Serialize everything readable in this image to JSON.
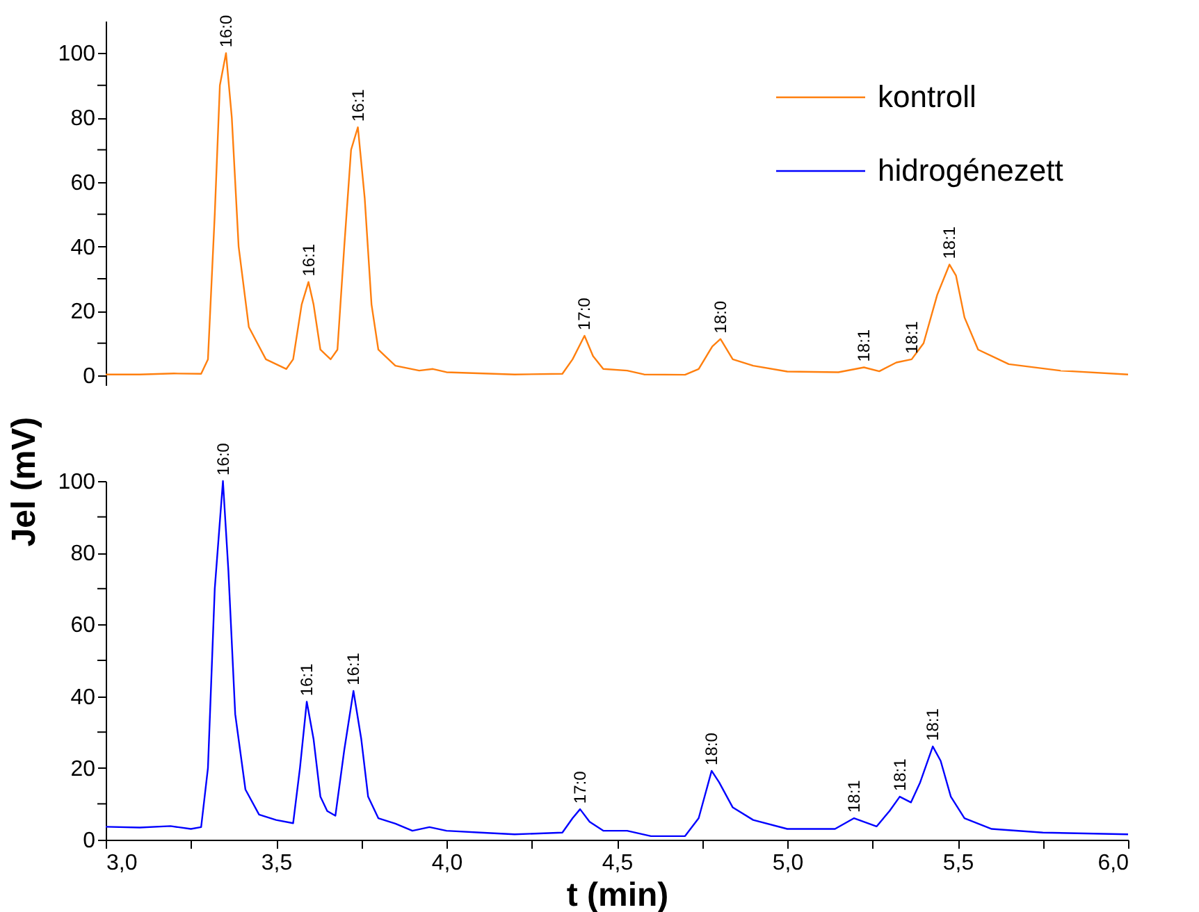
{
  "chart_data": [
    {
      "type": "line",
      "xlim": [
        3.0,
        6.0
      ],
      "ylim": [
        -3,
        110
      ],
      "tick_labels": "y",
      "legend": "top right",
      "grid": false,
      "yticks": [
        0,
        {
          "value": 10,
          "label": null
        },
        20,
        {
          "value": 30,
          "label": null
        },
        40,
        {
          "value": 50,
          "label": null
        },
        60,
        {
          "value": 70,
          "label": null
        },
        80,
        {
          "value": 90,
          "label": null
        },
        100
      ],
      "series": [
        {
          "name": "kontroll",
          "color": "#ff7f0e",
          "x": [
            3.0,
            3.1,
            3.2,
            3.28,
            3.3,
            3.32,
            3.335,
            3.353,
            3.37,
            3.39,
            3.42,
            3.47,
            3.53,
            3.55,
            3.575,
            3.595,
            3.61,
            3.63,
            3.66,
            3.68,
            3.7,
            3.72,
            3.74,
            3.76,
            3.78,
            3.8,
            3.85,
            3.92,
            3.96,
            4.0,
            4.2,
            4.34,
            4.37,
            4.405,
            4.43,
            4.46,
            4.53,
            4.58,
            4.7,
            4.74,
            4.78,
            4.804,
            4.84,
            4.9,
            5.0,
            5.15,
            5.225,
            5.27,
            5.32,
            5.365,
            5.4,
            5.44,
            5.476,
            5.495,
            5.52,
            5.56,
            5.65,
            5.8,
            6.0
          ],
          "values": [
            0.3,
            0.3,
            0.6,
            0.5,
            5,
            50,
            90,
            100,
            80,
            40,
            15,
            5,
            2,
            5,
            22,
            29,
            22,
            8,
            5,
            8,
            40,
            70,
            77,
            55,
            22,
            8,
            3,
            1.5,
            2,
            1,
            0.3,
            0.5,
            5,
            12.3,
            6,
            2,
            1.5,
            0.3,
            0.2,
            2,
            9,
            11.3,
            5,
            3,
            1.2,
            1,
            2.5,
            1.3,
            4,
            5,
            10,
            25,
            34.4,
            31,
            18,
            8,
            3.5,
            1.5,
            0.3
          ]
        }
      ],
      "annotations": [
        {
          "text": "16:0",
          "x": 3.353,
          "y": 100
        },
        {
          "text": "16:1",
          "x": 3.595,
          "y": 29
        },
        {
          "text": "16:1",
          "x": 3.74,
          "y": 77
        },
        {
          "text": "17:0",
          "x": 4.405,
          "y": 12.3
        },
        {
          "text": "18:0",
          "x": 4.804,
          "y": 11.3
        },
        {
          "text": "18:1",
          "x": 5.225,
          "y": 2.5
        },
        {
          "text": "18:1",
          "x": 5.365,
          "y": 5
        },
        {
          "text": "18:1",
          "x": 5.476,
          "y": 34.4
        }
      ]
    },
    {
      "type": "line",
      "xlim": [
        3.0,
        6.0
      ],
      "ylim": [
        0,
        100
      ],
      "xlabel": "t (min)",
      "ylabel": "Jel (mV)",
      "grid": false,
      "xticks": [
        {
          "value": 3.0,
          "label": "3,0"
        },
        {
          "value": 3.25,
          "label": null
        },
        {
          "value": 3.5,
          "label": "3,5"
        },
        {
          "value": 3.75,
          "label": null
        },
        {
          "value": 4.0,
          "label": "4,0"
        },
        {
          "value": 4.25,
          "label": null
        },
        {
          "value": 4.5,
          "label": "4,5"
        },
        {
          "value": 4.75,
          "label": null
        },
        {
          "value": 5.0,
          "label": "5,0"
        },
        {
          "value": 5.25,
          "label": null
        },
        {
          "value": 5.5,
          "label": "5,5"
        },
        {
          "value": 5.75,
          "label": null
        },
        {
          "value": 6.0,
          "label": "6,0"
        }
      ],
      "yticks": [
        0,
        {
          "value": 10,
          "label": null
        },
        20,
        {
          "value": 30,
          "label": null
        },
        40,
        {
          "value": 50,
          "label": null
        },
        60,
        {
          "value": 70,
          "label": null
        },
        80,
        {
          "value": 90,
          "label": null
        },
        100
      ],
      "series": [
        {
          "name": "hidrogénezett",
          "color": "#0000ff",
          "x": [
            3.0,
            3.1,
            3.19,
            3.25,
            3.28,
            3.3,
            3.32,
            3.344,
            3.36,
            3.38,
            3.41,
            3.45,
            3.5,
            3.55,
            3.57,
            3.59,
            3.61,
            3.63,
            3.65,
            3.674,
            3.7,
            3.727,
            3.75,
            3.77,
            3.8,
            3.85,
            3.9,
            3.95,
            4.0,
            4.1,
            4.2,
            4.34,
            4.37,
            4.392,
            4.42,
            4.46,
            4.53,
            4.6,
            4.7,
            4.74,
            4.778,
            4.8,
            4.84,
            4.9,
            5.0,
            5.14,
            5.196,
            5.262,
            5.3,
            5.33,
            5.363,
            5.39,
            5.427,
            5.45,
            5.48,
            5.52,
            5.6,
            5.75,
            6.0
          ],
          "values": [
            3.6,
            3.4,
            3.8,
            3,
            3.5,
            20,
            70,
            100,
            75,
            35,
            14,
            7,
            5.5,
            4.6,
            20,
            38.5,
            28,
            12,
            8,
            6.7,
            25,
            41.5,
            28,
            12,
            6,
            4.5,
            2.5,
            3.5,
            2.5,
            2,
            1.5,
            2,
            6,
            8.5,
            5,
            2.5,
            2.5,
            1,
            1,
            6,
            19.2,
            16,
            9,
            5.5,
            3,
            3,
            6,
            3.7,
            8,
            12,
            10.4,
            16,
            26,
            22,
            12,
            6,
            3,
            2,
            1.5
          ]
        }
      ],
      "annotations": [
        {
          "text": "16:0",
          "x": 3.344,
          "y": 100
        },
        {
          "text": "16:1",
          "x": 3.59,
          "y": 38.5
        },
        {
          "text": "16:1",
          "x": 3.727,
          "y": 41.5
        },
        {
          "text": "17:0",
          "x": 4.392,
          "y": 8.5
        },
        {
          "text": "18:0",
          "x": 4.778,
          "y": 19.2
        },
        {
          "text": "18:1",
          "x": 5.196,
          "y": 6
        },
        {
          "text": "18:1",
          "x": 5.33,
          "y": 12
        },
        {
          "text": "18:1",
          "x": 5.427,
          "y": 26
        }
      ]
    }
  ]
}
